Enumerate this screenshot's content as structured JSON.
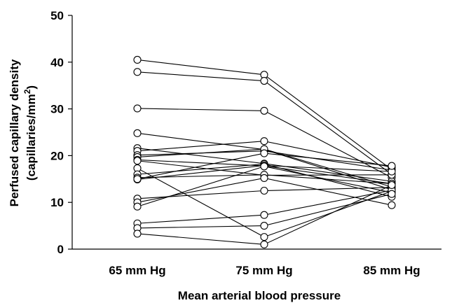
{
  "chart_data": {
    "type": "line",
    "xlabel": "Mean arterial blood pressure",
    "ylabel_line1": "Perfused capillary density",
    "ylabel_line2_prefix": "(capillaries/mm",
    "ylabel_line2_sup": "2",
    "ylabel_line2_suffix": ")",
    "categories": [
      "65 mm Hg",
      "75 mm Hg",
      "85 mm Hg"
    ],
    "ylim": [
      0,
      50
    ],
    "yticks": [
      0,
      10,
      20,
      30,
      40,
      50
    ],
    "grid": false,
    "legend": "none",
    "series": [
      {
        "values": [
          40.5,
          37.3,
          17.0
        ]
      },
      {
        "values": [
          37.9,
          36.0,
          16.0
        ]
      },
      {
        "values": [
          30.1,
          29.6,
          15.3
        ]
      },
      {
        "values": [
          24.8,
          21.3,
          12.7
        ]
      },
      {
        "values": [
          21.6,
          18.3,
          14.5
        ]
      },
      {
        "values": [
          21.0,
          23.1,
          17.5
        ]
      },
      {
        "values": [
          20.1,
          21.0,
          16.9
        ]
      },
      {
        "values": [
          19.7,
          21.4,
          13.3
        ]
      },
      {
        "values": [
          19.1,
          17.8,
          14.0
        ]
      },
      {
        "values": [
          18.9,
          15.8,
          15.9
        ]
      },
      {
        "values": [
          17.3,
          2.6,
          12.4
        ]
      },
      {
        "values": [
          16.0,
          18.2,
          11.2
        ]
      },
      {
        "values": [
          15.3,
          15.9,
          14.0
        ]
      },
      {
        "values": [
          14.9,
          17.9,
          16.6
        ]
      },
      {
        "values": [
          10.8,
          12.5,
          13.2
        ]
      },
      {
        "values": [
          10.0,
          15.2,
          9.4
        ]
      },
      {
        "values": [
          9.1,
          17.7,
          12.1
        ]
      },
      {
        "values": [
          5.5,
          7.3,
          12.6
        ]
      },
      {
        "values": [
          4.5,
          5.0,
          11.8
        ]
      },
      {
        "values": [
          3.3,
          1.0,
          13.7
        ]
      },
      {
        "values": [
          15.0,
          20.5,
          17.8
        ]
      }
    ]
  }
}
